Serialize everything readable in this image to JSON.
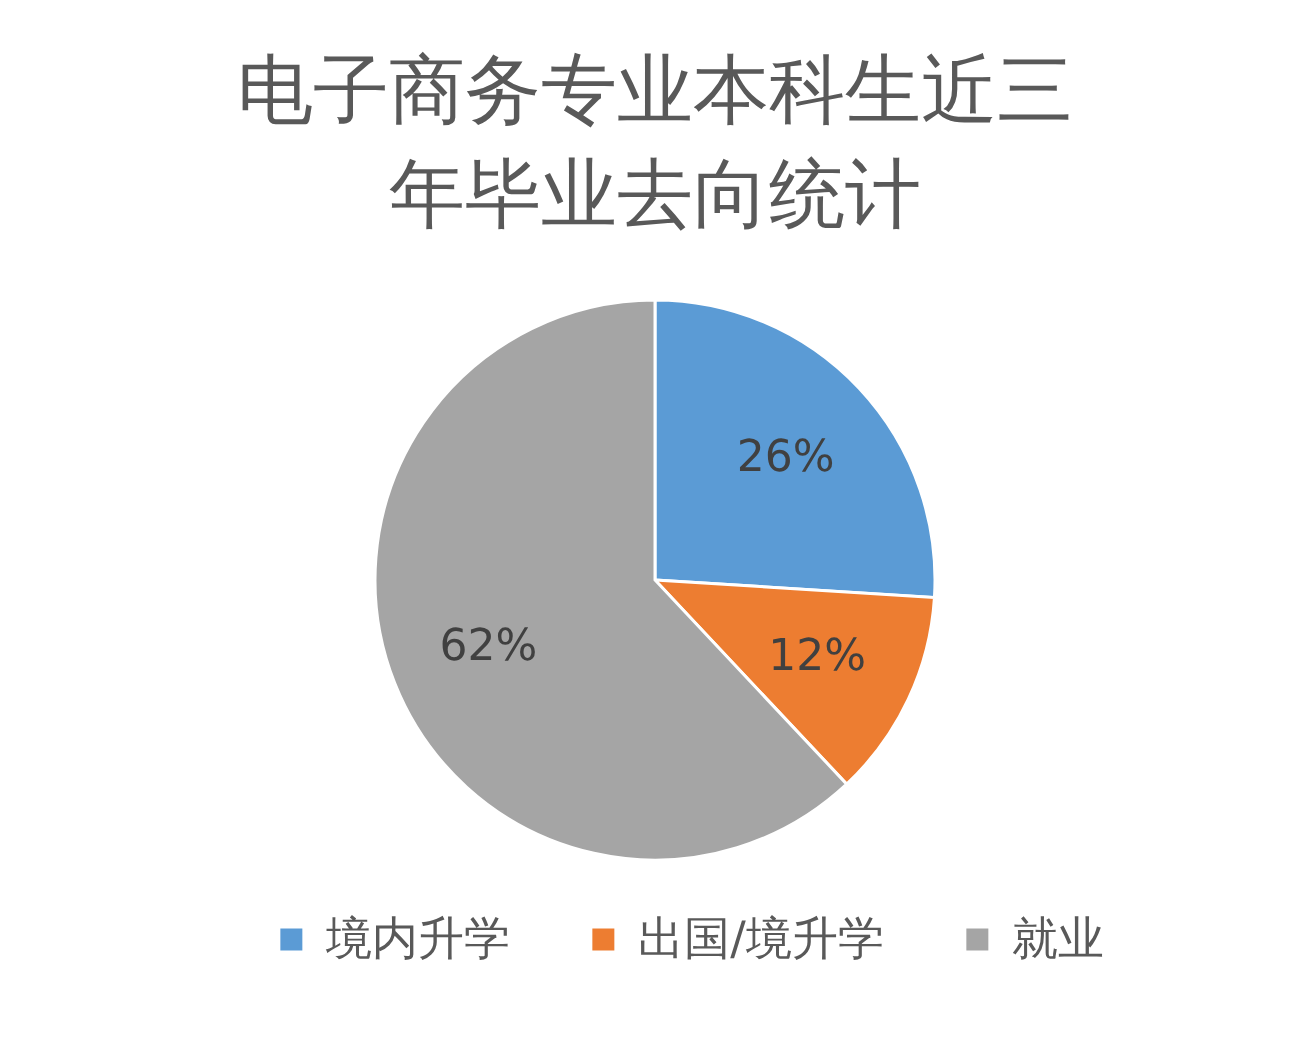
{
  "chart_data": {
    "type": "pie",
    "title": "电子商务专业本科生近三年毕业去向统计",
    "categories": [
      "境内升学",
      "出国/境升学",
      "就业"
    ],
    "values": [
      26,
      12,
      62
    ],
    "colors": [
      "#5b9bd5",
      "#ed7d31",
      "#a5a5a5"
    ],
    "value_labels": [
      "26%",
      "12%",
      "62%"
    ],
    "legend": "bottom"
  }
}
